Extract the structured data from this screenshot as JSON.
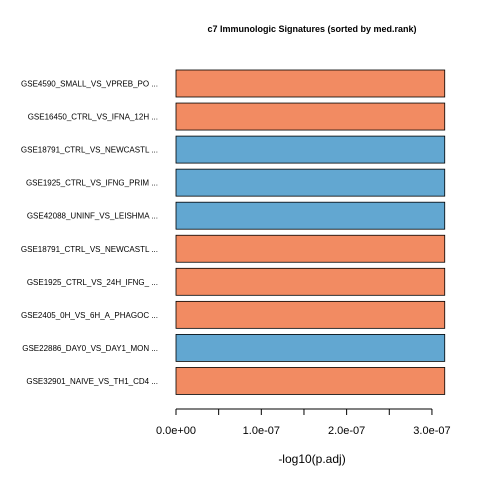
{
  "chart_data": {
    "type": "bar",
    "orientation": "horizontal",
    "title": "c7 Immunologic Signatures (sorted by med.rank)",
    "xlabel": "-log10(p.adj)",
    "ylabel": "",
    "xlim": [
      0,
      3.2e-07
    ],
    "x_ticks": [
      0,
      5e-08,
      1e-07,
      1.5e-07,
      2e-07,
      2.5e-07,
      3e-07
    ],
    "x_tick_labels": [
      {
        "value": 0,
        "label": "0.0e+00"
      },
      {
        "value": 1e-07,
        "label": "1.0e-07"
      },
      {
        "value": 2e-07,
        "label": "2.0e-07"
      },
      {
        "value": 3e-07,
        "label": "3.0e-07"
      }
    ],
    "grid": false,
    "colors": {
      "up": "#f28b62",
      "down": "#62a7d1"
    },
    "categories": [
      "GSE4590_SMALL_VS_VPREB_PO ...",
      "GSE16450_CTRL_VS_IFNA_12H ...",
      "GSE18791_CTRL_VS_NEWCASTL ...",
      "GSE1925_CTRL_VS_IFNG_PRIM ...",
      "GSE42088_UNINF_VS_LEISHMA ...",
      "GSE18791_CTRL_VS_NEWCASTL ...",
      "GSE1925_CTRL_VS_24H_IFNG_ ...",
      "GSE2405_0H_VS_6H_A_PHAGOC ...",
      "GSE22886_DAY0_VS_DAY1_MON ...",
      "GSE32901_NAIVE_VS_TH1_CD4 ..."
    ],
    "values": [
      3.15e-07,
      3.15e-07,
      3.15e-07,
      3.15e-07,
      3.15e-07,
      3.15e-07,
      3.15e-07,
      3.15e-07,
      3.15e-07,
      3.15e-07
    ],
    "bar_colors": [
      "up",
      "up",
      "down",
      "down",
      "down",
      "up",
      "up",
      "up",
      "down",
      "up"
    ]
  }
}
